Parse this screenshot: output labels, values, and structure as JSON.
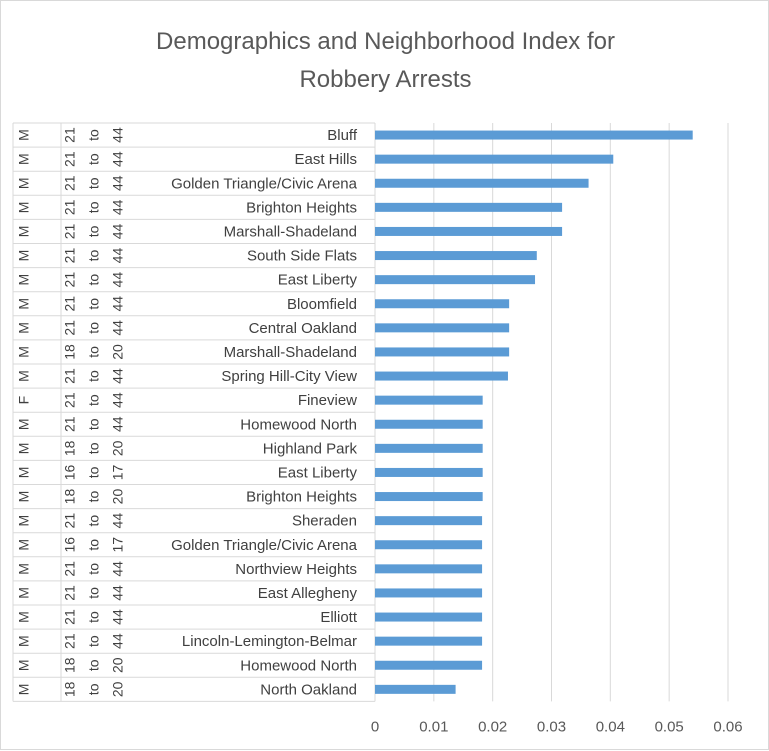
{
  "chart_data": {
    "type": "bar",
    "orientation": "horizontal",
    "title": [
      "Demographics and Neighborhood Index for",
      "Robbery Arrests"
    ],
    "xlim": [
      0,
      0.06
    ],
    "x_ticks": [
      "0",
      "0.01",
      "0.02",
      "0.03",
      "0.04",
      "0.05",
      "0.06"
    ],
    "grid": "vertical",
    "bar_color": "#5b9bd5",
    "categories": [
      {
        "sex": "M",
        "age": "21 to 44",
        "neighborhood": "Bluff",
        "value": 0.054
      },
      {
        "sex": "M",
        "age": "21 to 44",
        "neighborhood": "East Hills",
        "value": 0.0405
      },
      {
        "sex": "M",
        "age": "21 to 44",
        "neighborhood": "Golden Triangle/Civic Arena",
        "value": 0.0363
      },
      {
        "sex": "M",
        "age": "21 to 44",
        "neighborhood": "Brighton Heights",
        "value": 0.0318
      },
      {
        "sex": "M",
        "age": "21 to 44",
        "neighborhood": "Marshall-Shadeland",
        "value": 0.0318
      },
      {
        "sex": "M",
        "age": "21 to 44",
        "neighborhood": "South Side Flats",
        "value": 0.0275
      },
      {
        "sex": "M",
        "age": "21 to 44",
        "neighborhood": "East Liberty",
        "value": 0.0272
      },
      {
        "sex": "M",
        "age": "21 to 44",
        "neighborhood": "Bloomfield",
        "value": 0.0228
      },
      {
        "sex": "M",
        "age": "21 to 44",
        "neighborhood": "Central Oakland",
        "value": 0.0228
      },
      {
        "sex": "M",
        "age": "18 to 20",
        "neighborhood": "Marshall-Shadeland",
        "value": 0.0228
      },
      {
        "sex": "M",
        "age": "21 to 44",
        "neighborhood": "Spring Hill-City View",
        "value": 0.0226
      },
      {
        "sex": "F",
        "age": "21 to 44",
        "neighborhood": "Fineview",
        "value": 0.0183
      },
      {
        "sex": "M",
        "age": "21 to 44",
        "neighborhood": "Homewood North",
        "value": 0.0183
      },
      {
        "sex": "M",
        "age": "18 to 20",
        "neighborhood": "Highland Park",
        "value": 0.0183
      },
      {
        "sex": "M",
        "age": "16 to 17",
        "neighborhood": "East Liberty",
        "value": 0.0183
      },
      {
        "sex": "M",
        "age": "18 to 20",
        "neighborhood": "Brighton Heights",
        "value": 0.0183
      },
      {
        "sex": "M",
        "age": "21 to 44",
        "neighborhood": "Sheraden",
        "value": 0.0182
      },
      {
        "sex": "M",
        "age": "16 to 17",
        "neighborhood": "Golden Triangle/Civic Arena",
        "value": 0.0182
      },
      {
        "sex": "M",
        "age": "21 to 44",
        "neighborhood": "Northview Heights",
        "value": 0.0182
      },
      {
        "sex": "M",
        "age": "21 to 44",
        "neighborhood": "East Allegheny",
        "value": 0.0182
      },
      {
        "sex": "M",
        "age": "21 to 44",
        "neighborhood": "Elliott",
        "value": 0.0182
      },
      {
        "sex": "M",
        "age": "21 to 44",
        "neighborhood": "Lincoln-Lemington-Belmar",
        "value": 0.0182
      },
      {
        "sex": "M",
        "age": "18 to 20",
        "neighborhood": "Homewood North",
        "value": 0.0182
      },
      {
        "sex": "M",
        "age": "18 to 20",
        "neighborhood": "North Oakland",
        "value": 0.0137
      }
    ]
  }
}
